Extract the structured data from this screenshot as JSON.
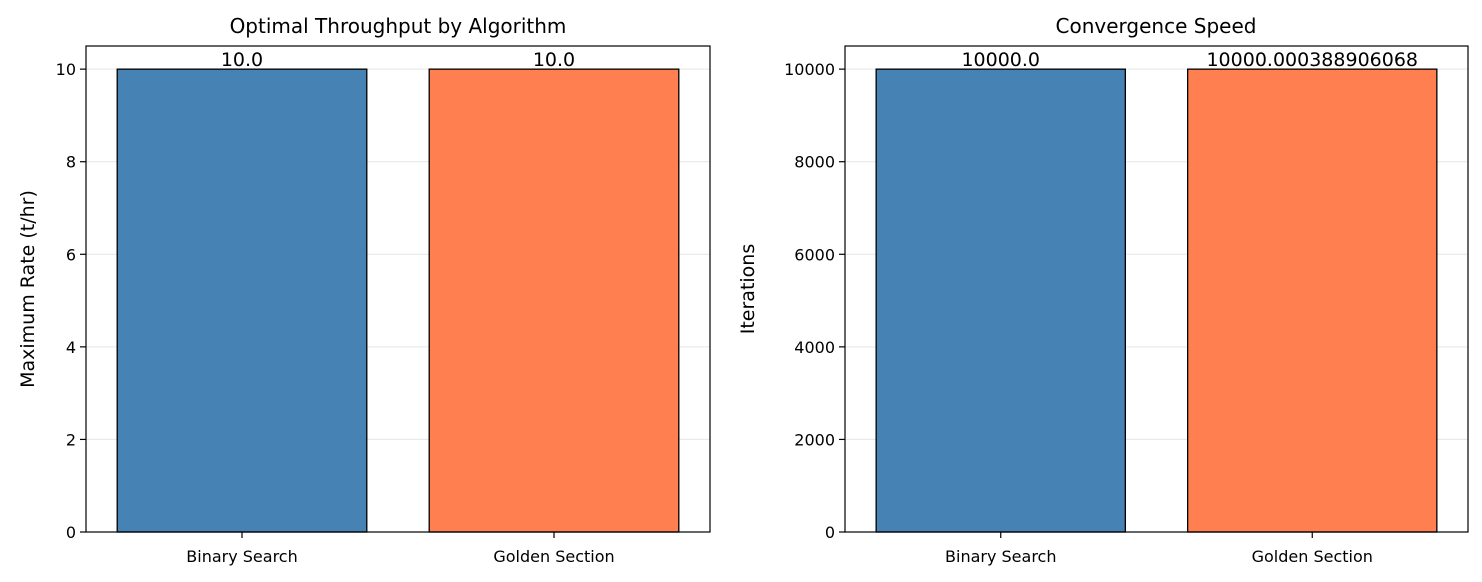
{
  "colors": {
    "bar_blue": "#4682B4",
    "bar_orange": "#FF7F50",
    "edge": "#000000",
    "grid": "#e6e6e6"
  },
  "chart_data": [
    {
      "type": "bar",
      "title": "Optimal Throughput by Algorithm",
      "xlabel": "",
      "ylabel": "Maximum Rate (t/hr)",
      "categories": [
        "Binary Search",
        "Golden Section"
      ],
      "values": [
        10.0,
        10.0
      ],
      "bar_labels": [
        "10.0",
        "10.0"
      ],
      "bar_colors": [
        "#4682B4",
        "#FF7F50"
      ],
      "ylim": [
        0,
        10.5
      ],
      "yticks": [
        0,
        2,
        4,
        6,
        8,
        10
      ],
      "ytick_labels": [
        "0",
        "2",
        "4",
        "6",
        "8",
        "10"
      ],
      "grid": "y",
      "legend": "none"
    },
    {
      "type": "bar",
      "title": "Convergence Speed",
      "xlabel": "",
      "ylabel": "Iterations",
      "categories": [
        "Binary Search",
        "Golden Section"
      ],
      "values": [
        10000.0,
        10000.000388906068
      ],
      "bar_labels": [
        "10000.0",
        "10000.000388906068"
      ],
      "bar_colors": [
        "#4682B4",
        "#FF7F50"
      ],
      "ylim": [
        0,
        10500
      ],
      "yticks": [
        0,
        2000,
        4000,
        6000,
        8000,
        10000
      ],
      "ytick_labels": [
        "0",
        "2000",
        "4000",
        "6000",
        "8000",
        "10000"
      ],
      "grid": "y",
      "legend": "none"
    }
  ]
}
